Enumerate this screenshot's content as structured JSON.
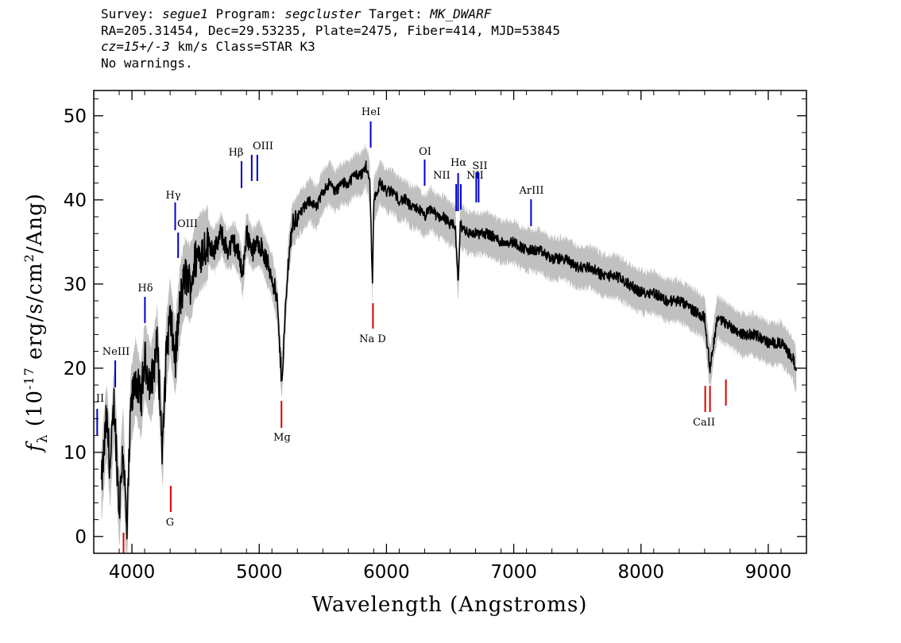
{
  "header": {
    "survey_label": "Survey:",
    "survey": "segue1",
    "program_label": "Program:",
    "program": "segcluster",
    "target_label": "Target:",
    "target": "MK_DWARF",
    "line2": "RA=205.31454, Dec=29.53235, Plate=2475, Fiber=414, MJD=53845",
    "cz": "cz=15+/-3",
    "cz_rest": " km/s Class=STAR K3",
    "line4": "No warnings."
  },
  "colors": {
    "flux": "#000000",
    "error_band": "#c0c0c0",
    "emission_line": "#0000cc",
    "absorption_line": "#dd0000"
  },
  "chart_data": {
    "type": "line",
    "title": "",
    "xlabel": "Wavelength (Angstroms)",
    "ylabel": "f_λ (10^-17 erg/s/cm^2/Ang)",
    "xlim": [
      3700,
      9300
    ],
    "ylim": [
      -2,
      53
    ],
    "x_ticks": [
      4000,
      5000,
      6000,
      7000,
      8000,
      9000
    ],
    "x_tick_labels": [
      "4000",
      "5000",
      "6000",
      "7000",
      "8000",
      "9000"
    ],
    "y_ticks": [
      0,
      10,
      20,
      30,
      40,
      50
    ],
    "y_tick_labels": [
      "0",
      "10",
      "20",
      "30",
      "40",
      "50"
    ],
    "grid": false,
    "legend": "none",
    "series": [
      {
        "points": [
          [
            3760,
            6
          ],
          [
            3800,
            14
          ],
          [
            3830,
            8
          ],
          [
            3860,
            16
          ],
          [
            3900,
            3
          ],
          [
            3930,
            11
          ],
          [
            3960,
            0
          ],
          [
            3990,
            15
          ],
          [
            4030,
            19
          ],
          [
            4070,
            16
          ],
          [
            4100,
            21
          ],
          [
            4150,
            18
          ],
          [
            4200,
            23
          ],
          [
            4240,
            10
          ],
          [
            4270,
            22
          ],
          [
            4300,
            26
          ],
          [
            4340,
            21
          ],
          [
            4380,
            28
          ],
          [
            4420,
            31
          ],
          [
            4460,
            30
          ],
          [
            4500,
            33
          ],
          [
            4550,
            34
          ],
          [
            4600,
            35
          ],
          [
            4650,
            34
          ],
          [
            4700,
            36
          ],
          [
            4750,
            34
          ],
          [
            4800,
            35
          ],
          [
            4850,
            33
          ],
          [
            4870,
            31
          ],
          [
            4900,
            36
          ],
          [
            4950,
            34
          ],
          [
            5000,
            35
          ],
          [
            5050,
            33
          ],
          [
            5100,
            31
          ],
          [
            5140,
            28
          ],
          [
            5170,
            20
          ],
          [
            5180,
            19
          ],
          [
            5200,
            25
          ],
          [
            5230,
            33
          ],
          [
            5260,
            37
          ],
          [
            5300,
            38
          ],
          [
            5350,
            39
          ],
          [
            5400,
            40
          ],
          [
            5450,
            39
          ],
          [
            5500,
            41
          ],
          [
            5550,
            42
          ],
          [
            5600,
            41
          ],
          [
            5650,
            42
          ],
          [
            5700,
            42
          ],
          [
            5750,
            43
          ],
          [
            5800,
            43
          ],
          [
            5840,
            44
          ],
          [
            5870,
            42
          ],
          [
            5890,
            30
          ],
          [
            5900,
            40
          ],
          [
            5950,
            42
          ],
          [
            6000,
            41
          ],
          [
            6050,
            41
          ],
          [
            6100,
            40
          ],
          [
            6150,
            40
          ],
          [
            6200,
            39
          ],
          [
            6250,
            39
          ],
          [
            6300,
            38
          ],
          [
            6350,
            39
          ],
          [
            6400,
            38
          ],
          [
            6450,
            38
          ],
          [
            6500,
            37
          ],
          [
            6540,
            37
          ],
          [
            6563,
            30
          ],
          [
            6580,
            37
          ],
          [
            6650,
            36
          ],
          [
            6700,
            36
          ],
          [
            6800,
            36
          ],
          [
            6900,
            35
          ],
          [
            7000,
            35
          ],
          [
            7100,
            34
          ],
          [
            7200,
            34
          ],
          [
            7300,
            33
          ],
          [
            7400,
            33
          ],
          [
            7500,
            32
          ],
          [
            7600,
            32
          ],
          [
            7700,
            31
          ],
          [
            7800,
            31
          ],
          [
            7900,
            30
          ],
          [
            8000,
            29
          ],
          [
            8100,
            29
          ],
          [
            8200,
            28
          ],
          [
            8300,
            28
          ],
          [
            8400,
            27
          ],
          [
            8500,
            26
          ],
          [
            8542,
            20
          ],
          [
            8600,
            26
          ],
          [
            8700,
            25
          ],
          [
            8800,
            24
          ],
          [
            8900,
            24
          ],
          [
            9000,
            23
          ],
          [
            9100,
            23
          ],
          [
            9150,
            22
          ],
          [
            9200,
            21
          ],
          [
            9220,
            19.5
          ]
        ]
      }
    ],
    "emission_lines": [
      {
        "label": "II",
        "wavelength": 3727
      },
      {
        "label": "NeIII",
        "wavelength": 3869
      },
      {
        "label": "Hδ",
        "wavelength": 4102
      },
      {
        "label": "Hγ",
        "wavelength": 4340
      },
      {
        "label": "OIII",
        "wavelength": 4363
      },
      {
        "label": "Hβ",
        "wavelength": 4861
      },
      {
        "label": "OIII",
        "wavelength": 4985
      },
      {
        "label": "HeI",
        "wavelength": 5876
      },
      {
        "label": "OI",
        "wavelength": 6300
      },
      {
        "label": "NII",
        "wavelength": 6548
      },
      {
        "label": "Hα",
        "wavelength": 6563
      },
      {
        "label": "NII",
        "wavelength": 6584
      },
      {
        "label": "SII",
        "wavelength": 6724
      },
      {
        "label": "ArIII",
        "wavelength": 7136
      }
    ],
    "absorption_lines": [
      {
        "label": "G",
        "wavelength": 4305
      },
      {
        "label": "Mg",
        "wavelength": 5175
      },
      {
        "label": "Na D",
        "wavelength": 5894
      },
      {
        "label": "CaII",
        "wavelength": 8542
      }
    ]
  }
}
